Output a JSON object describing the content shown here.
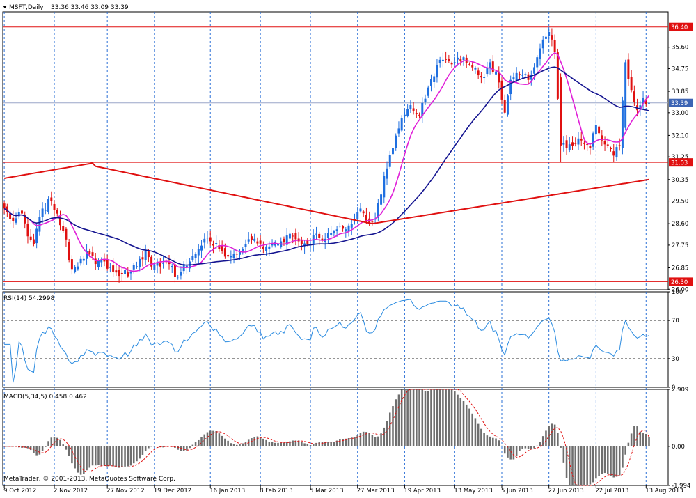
{
  "window": {
    "title": "MSFT,Daily",
    "ohlc_text": "33.36 33.46 33.09 33.39"
  },
  "footer": {
    "copyright": "MetaTrader, © 2001-2013, MetaQuotes Software Corp."
  },
  "colors": {
    "background": "#ffffff",
    "grid": "#2a6fd6",
    "axis": "#000000",
    "bull_candle": "#1f6fe0",
    "bear_candle": "#e01010",
    "ma_fast": "#e020d8",
    "ma_mid": "#141490",
    "ma_slow": "#e01010",
    "level_line": "#e01010",
    "price_line": "#9aa6c8",
    "rsi_line": "#2a8be0",
    "macd_hist": "#6e6e6e",
    "macd_signal": "#e01010",
    "label_bg_red": "#e01010",
    "label_bg_blue": "#3c64b4"
  },
  "chart_data": [
    {
      "type": "candlestick",
      "panel": "price",
      "symbol": "MSFT",
      "timeframe": "Daily",
      "last": {
        "open": 33.36,
        "high": 33.46,
        "low": 33.09,
        "close": 33.39
      },
      "ylim": [
        25.98,
        37.0
      ],
      "y_ticks": [
        "35.60",
        "34.75",
        "33.85",
        "33.00",
        "32.10",
        "31.25",
        "30.35",
        "29.50",
        "28.60",
        "27.75",
        "26.85",
        "26.00"
      ],
      "x_tick_labels": [
        "9 Oct 2012",
        "2 Nov 2012",
        "27 Nov 2012",
        "19 Dec 2012",
        "16 Jan 2013",
        "8 Feb 2013",
        "5 Mar 2013",
        "27 Mar 2013",
        "19 Apr 2013",
        "13 May 2013",
        "5 Jun 2013",
        "27 Jun 2013",
        "22 Jul 2013",
        "13 Aug 2013"
      ],
      "x_tick_index": [
        0,
        17,
        35,
        51,
        70,
        87,
        104,
        120,
        136,
        153,
        169,
        185,
        201,
        218
      ],
      "n_bars": 226,
      "close_anchors": [
        [
          0,
          29.2
        ],
        [
          3,
          28.7
        ],
        [
          6,
          29.0
        ],
        [
          8,
          28.1
        ],
        [
          10,
          27.8
        ],
        [
          13,
          29.2
        ],
        [
          16,
          29.5
        ],
        [
          18,
          29.0
        ],
        [
          20,
          28.3
        ],
        [
          23,
          26.8
        ],
        [
          26,
          27.2
        ],
        [
          28,
          27.5
        ],
        [
          31,
          27.0
        ],
        [
          34,
          27.1
        ],
        [
          37,
          26.7
        ],
        [
          40,
          26.6
        ],
        [
          43,
          26.7
        ],
        [
          46,
          27.2
        ],
        [
          48,
          27.5
        ],
        [
          50,
          26.9
        ],
        [
          53,
          26.9
        ],
        [
          56,
          27.0
        ],
        [
          59,
          26.5
        ],
        [
          61,
          27.0
        ],
        [
          63,
          27.1
        ],
        [
          66,
          27.6
        ],
        [
          68,
          28.0
        ],
        [
          70,
          27.9
        ],
        [
          73,
          27.6
        ],
        [
          76,
          27.3
        ],
        [
          79,
          27.4
        ],
        [
          82,
          27.8
        ],
        [
          85,
          28.0
        ],
        [
          88,
          27.6
        ],
        [
          91,
          27.8
        ],
        [
          94,
          27.9
        ],
        [
          97,
          28.2
        ],
        [
          100,
          27.9
        ],
        [
          103,
          27.8
        ],
        [
          106,
          28.2
        ],
        [
          109,
          28.0
        ],
        [
          112,
          28.3
        ],
        [
          115,
          28.4
        ],
        [
          118,
          28.6
        ],
        [
          121,
          29.2
        ],
        [
          123,
          28.7
        ],
        [
          126,
          28.8
        ],
        [
          129,
          30.5
        ],
        [
          132,
          31.6
        ],
        [
          135,
          32.8
        ],
        [
          138,
          33.3
        ],
        [
          141,
          32.9
        ],
        [
          144,
          34.0
        ],
        [
          147,
          34.9
        ],
        [
          150,
          35.1
        ],
        [
          153,
          35.0
        ],
        [
          156,
          35.2
        ],
        [
          159,
          34.8
        ],
        [
          162,
          34.4
        ],
        [
          165,
          35.0
        ],
        [
          168,
          34.2
        ],
        [
          170,
          33.0
        ],
        [
          172,
          34.3
        ],
        [
          175,
          34.5
        ],
        [
          178,
          34.3
        ],
        [
          181,
          35.2
        ],
        [
          183,
          35.9
        ],
        [
          185,
          36.2
        ],
        [
          187,
          35.4
        ],
        [
          189,
          31.7
        ],
        [
          191,
          31.6
        ],
        [
          193,
          31.7
        ],
        [
          196,
          31.9
        ],
        [
          199,
          31.6
        ],
        [
          201,
          32.5
        ],
        [
          203,
          31.9
        ],
        [
          205,
          31.7
        ],
        [
          207,
          31.3
        ],
        [
          209,
          31.7
        ],
        [
          211,
          35.0
        ],
        [
          213,
          33.9
        ],
        [
          215,
          33.1
        ],
        [
          217,
          33.6
        ],
        [
          219,
          33.39
        ]
      ],
      "levels": [
        {
          "value": 36.4,
          "label": "36.40",
          "color": "#e01010"
        },
        {
          "value": 31.03,
          "label": "31.03",
          "color": "#e01010"
        },
        {
          "value": 26.3,
          "label": "26.30",
          "color": "#e01010"
        },
        {
          "value": 33.39,
          "label": "33.39",
          "color": "#3c64b4",
          "kind": "current-price"
        }
      ],
      "moving_averages": [
        {
          "period": 10,
          "color": "#e020d8"
        },
        {
          "period": 40,
          "color": "#141490"
        },
        {
          "period": 200,
          "color": "#e01010"
        }
      ]
    },
    {
      "type": "line",
      "panel": "rsi",
      "label": "RSI(14) 54.2998",
      "ylim": [
        0,
        100
      ],
      "y_ticks": [
        "100",
        "70",
        "30",
        "0"
      ],
      "levels": [
        70,
        30
      ],
      "last_value": 54.2998
    },
    {
      "type": "histogram",
      "panel": "macd",
      "label": "MACD(5,34,5) 0.458 0.462",
      "ylim": [
        -1.994,
        2.909
      ],
      "y_ticks": [
        "2.909",
        "0.00",
        "-1.994"
      ],
      "last_macd": 0.458,
      "last_signal": 0.462
    }
  ]
}
